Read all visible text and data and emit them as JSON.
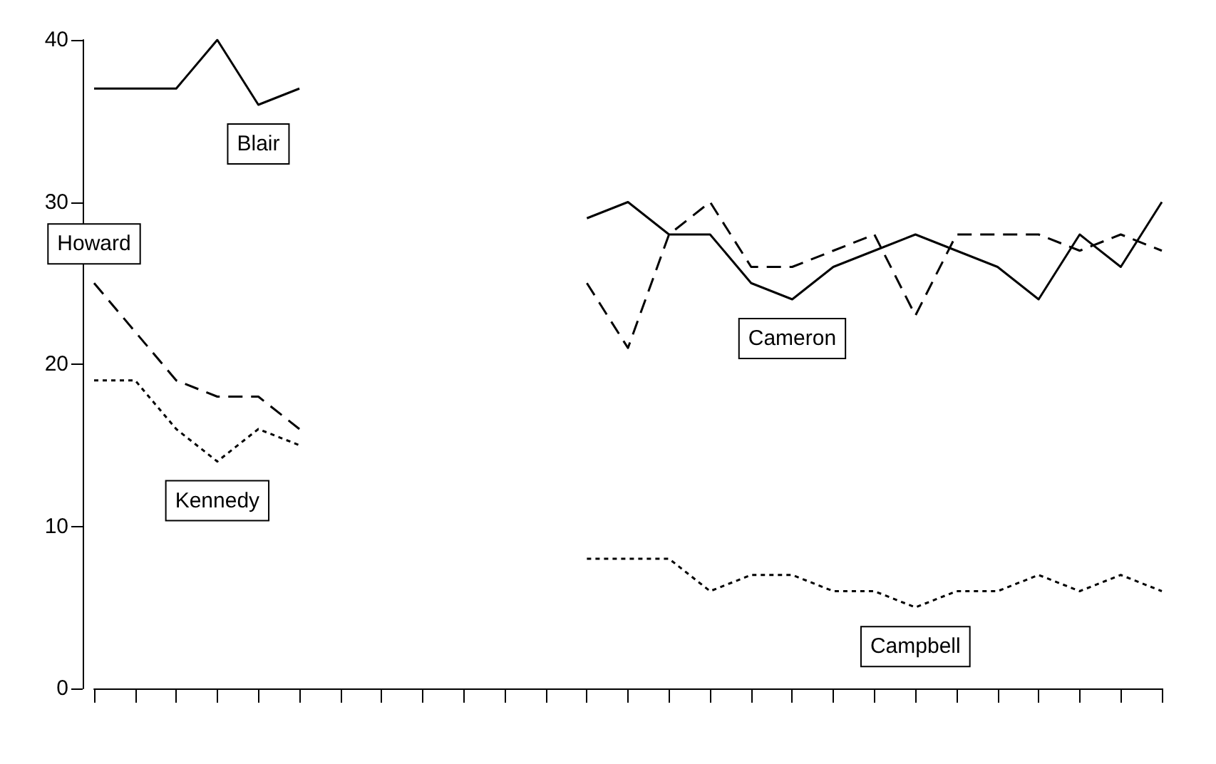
{
  "chart_data": {
    "type": "line",
    "categories": [
      null,
      null,
      null,
      null,
      null,
      null,
      null,
      null,
      null,
      null,
      null,
      null,
      null,
      null,
      null,
      null,
      null,
      null,
      null,
      null,
      null,
      null,
      null,
      null,
      null,
      null,
      null
    ],
    "ylim": [
      0,
      40
    ],
    "yticks": [
      0,
      10,
      20,
      30,
      40
    ],
    "grid": false,
    "legend": false,
    "marker": "none",
    "tick_labels": "y",
    "series": [
      {
        "name": "Blair",
        "color": "#000000",
        "line_style": "solid",
        "values": [
          37,
          37,
          37,
          40,
          36,
          37,
          null,
          null,
          null,
          null,
          null,
          null,
          null,
          null,
          null,
          null,
          null,
          null,
          null,
          null,
          null,
          null,
          null,
          null,
          null,
          null,
          null
        ]
      },
      {
        "name": "Howard",
        "color": "#000000",
        "line_style": "dashed",
        "values": [
          25,
          22,
          19,
          18,
          18,
          16,
          null,
          null,
          null,
          null,
          null,
          null,
          null,
          null,
          null,
          null,
          null,
          null,
          null,
          null,
          null,
          null,
          null,
          null,
          null,
          null,
          null
        ]
      },
      {
        "name": "Kennedy",
        "color": "#000000",
        "line_style": "dotted",
        "values": [
          19,
          19,
          16,
          14,
          16,
          15,
          null,
          null,
          null,
          null,
          null,
          null,
          null,
          null,
          null,
          null,
          null,
          null,
          null,
          null,
          null,
          null,
          null,
          null,
          null,
          null,
          null
        ]
      },
      {
        "name": "Cameron",
        "color": "#000000",
        "line_style": "solid",
        "values": [
          null,
          null,
          null,
          null,
          null,
          null,
          null,
          null,
          null,
          null,
          null,
          null,
          29,
          30,
          28,
          28,
          25,
          24,
          26,
          27,
          28,
          27,
          26,
          24,
          28,
          26,
          30
        ]
      },
      {
        "color": "#000000",
        "line_style": "dashed",
        "values": [
          null,
          null,
          null,
          null,
          null,
          null,
          null,
          null,
          null,
          null,
          null,
          null,
          25,
          21,
          28,
          30,
          26,
          26,
          27,
          28,
          23,
          28,
          28,
          28,
          27,
          28,
          27
        ]
      },
      {
        "name": "Campbell",
        "color": "#000000",
        "line_style": "dotted",
        "values": [
          null,
          null,
          null,
          null,
          null,
          null,
          null,
          null,
          null,
          null,
          null,
          null,
          8,
          8,
          8,
          6,
          7,
          7,
          6,
          6,
          5,
          6,
          6,
          7,
          6,
          7,
          6
        ]
      }
    ]
  }
}
